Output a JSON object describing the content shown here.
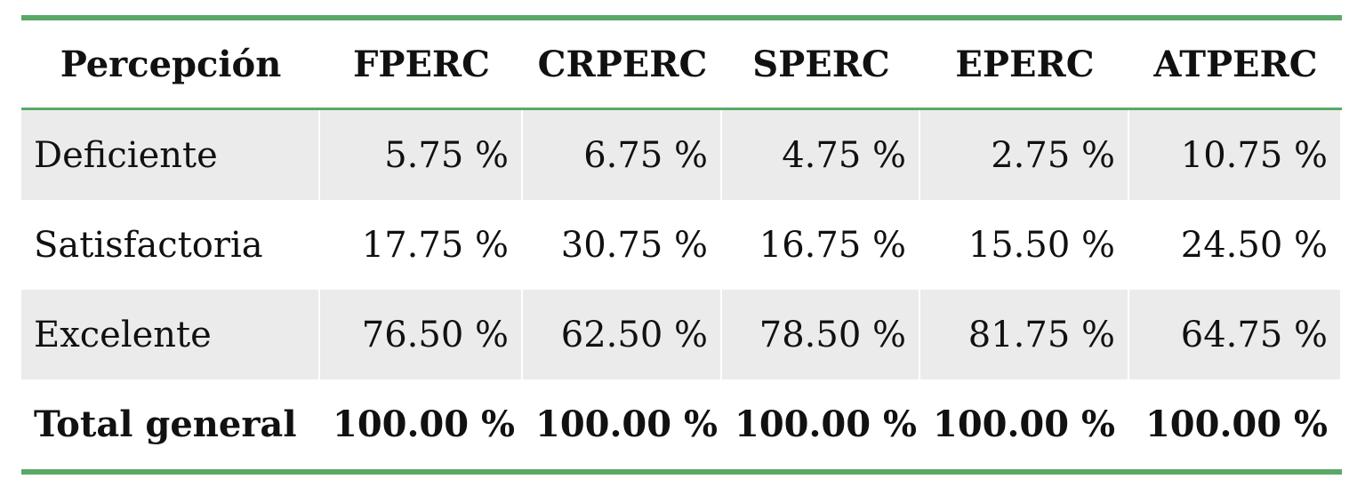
{
  "table": {
    "header": [
      "Percepción",
      "FPERC",
      "CRPERC",
      "SPERC",
      "EPERC",
      "ATPERC"
    ],
    "rows": [
      [
        "Deficiente",
        "5.75 %",
        "6.75 %",
        "4.75 %",
        "2.75 %",
        "10.75 %"
      ],
      [
        "Satisfactoria",
        "17.75 %",
        "30.75 %",
        "16.75 %",
        "15.50 %",
        "24.50 %"
      ],
      [
        "Excelente",
        "76.50 %",
        "62.50 %",
        "78.50 %",
        "81.75 %",
        "64.75 %"
      ],
      [
        "Total general",
        "100.00 %",
        "100.00 %",
        "100.00 %",
        "100.00 %",
        "100.00 %"
      ]
    ]
  }
}
